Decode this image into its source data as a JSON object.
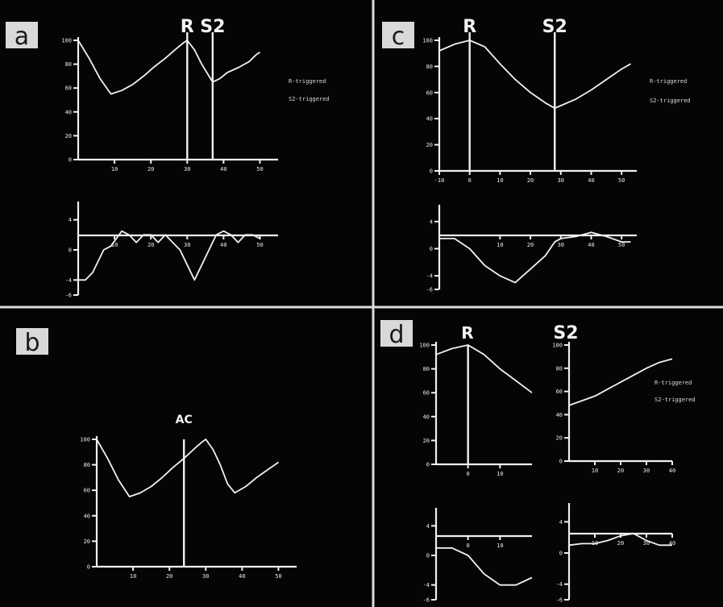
{
  "panels": {
    "a": {
      "label": "a"
    },
    "b": {
      "label": "b"
    },
    "c": {
      "label": "c"
    },
    "d": {
      "label": "d"
    }
  },
  "markers": {
    "r": "R",
    "s2": "S2",
    "ac": "AC"
  },
  "legend": {
    "r": "R-triggered",
    "s2": "S2-triggered"
  },
  "colors": {
    "background": "#050505",
    "trace": "#f0f0f0",
    "divider": "#dddddd",
    "label_box": "#d9d9d9"
  },
  "chart_data": [
    {
      "id": "a-top",
      "type": "line",
      "x": [
        0,
        10,
        20,
        30,
        40,
        50
      ],
      "ylim": [
        0,
        100
      ],
      "xlim": [
        0,
        55
      ],
      "yticks": [
        0,
        20,
        40,
        60,
        80,
        100
      ],
      "xticks": [
        10,
        20,
        30,
        40,
        50
      ],
      "series": [
        {
          "values": [
            [
              0,
              100
            ],
            [
              3,
              85
            ],
            [
              6,
              68
            ],
            [
              9,
              55
            ],
            [
              12,
              58
            ],
            [
              15,
              63
            ],
            [
              18,
              70
            ],
            [
              21,
              78
            ],
            [
              24,
              85
            ],
            [
              27,
              93
            ],
            [
              29,
              98
            ],
            [
              30,
              100
            ],
            [
              32,
              92
            ],
            [
              34,
              80
            ],
            [
              36,
              70
            ],
            [
              37,
              65
            ],
            [
              39,
              68
            ],
            [
              41,
              73
            ],
            [
              44,
              77
            ],
            [
              47,
              82
            ],
            [
              49,
              88
            ],
            [
              50,
              90
            ]
          ]
        }
      ],
      "markers": [
        {
          "x": 30,
          "label": "R"
        },
        {
          "x": 37,
          "label": "S2"
        }
      ]
    },
    {
      "id": "a-bottom",
      "type": "line",
      "xlim": [
        0,
        55
      ],
      "ylim": [
        -6,
        6
      ],
      "yticks": [
        -6,
        -4,
        0,
        4
      ],
      "xticks": [
        10,
        20,
        30,
        40,
        50
      ],
      "series": [
        {
          "values": [
            [
              0,
              -4
            ],
            [
              2,
              -4
            ],
            [
              4,
              -3
            ],
            [
              7,
              0
            ],
            [
              9,
              0.5
            ],
            [
              12,
              2.5
            ],
            [
              14,
              2
            ],
            [
              16,
              1
            ],
            [
              18,
              2
            ],
            [
              20,
              2
            ],
            [
              22,
              1
            ],
            [
              24,
              2
            ],
            [
              26,
              1
            ],
            [
              28,
              0
            ],
            [
              30,
              -2
            ],
            [
              32,
              -4
            ],
            [
              34,
              -2
            ],
            [
              36,
              0
            ],
            [
              38,
              2
            ],
            [
              40,
              2.5
            ],
            [
              42,
              2
            ],
            [
              44,
              1
            ],
            [
              46,
              2
            ],
            [
              48,
              2
            ],
            [
              50,
              1.5
            ]
          ]
        }
      ]
    },
    {
      "id": "b",
      "type": "line",
      "xlim": [
        0,
        55
      ],
      "ylim": [
        0,
        100
      ],
      "yticks": [
        0,
        20,
        40,
        60,
        80,
        100
      ],
      "xticks": [
        10,
        20,
        30,
        40,
        50
      ],
      "series": [
        {
          "values": [
            [
              0,
              100
            ],
            [
              3,
              85
            ],
            [
              6,
              68
            ],
            [
              9,
              55
            ],
            [
              12,
              58
            ],
            [
              15,
              63
            ],
            [
              18,
              70
            ],
            [
              21,
              78
            ],
            [
              24,
              85
            ],
            [
              27,
              93
            ],
            [
              29,
              98
            ],
            [
              30,
              100
            ],
            [
              32,
              92
            ],
            [
              34,
              80
            ],
            [
              36,
              65
            ],
            [
              38,
              58
            ],
            [
              41,
              63
            ],
            [
              44,
              70
            ],
            [
              47,
              76
            ],
            [
              49,
              80
            ],
            [
              50,
              82
            ]
          ]
        }
      ],
      "markers": [
        {
          "x": 24,
          "label": "AC"
        }
      ]
    },
    {
      "id": "c-top",
      "type": "line",
      "xlim": [
        -10,
        55
      ],
      "ylim": [
        0,
        100
      ],
      "yticks": [
        0,
        20,
        40,
        60,
        80,
        100
      ],
      "xticks": [
        -10,
        0,
        10,
        20,
        30,
        40,
        50
      ],
      "series": [
        {
          "values": [
            [
              -10,
              92
            ],
            [
              -5,
              97
            ],
            [
              0,
              100
            ],
            [
              5,
              95
            ],
            [
              10,
              82
            ],
            [
              15,
              70
            ],
            [
              20,
              60
            ],
            [
              25,
              52
            ],
            [
              28,
              48
            ],
            [
              30,
              50
            ],
            [
              35,
              55
            ],
            [
              40,
              62
            ],
            [
              45,
              70
            ],
            [
              50,
              78
            ],
            [
              53,
              82
            ]
          ]
        }
      ],
      "markers": [
        {
          "x": 0,
          "label": "R"
        },
        {
          "x": 28,
          "label": "S2"
        }
      ]
    },
    {
      "id": "c-bottom",
      "type": "line",
      "xlim": [
        -10,
        55
      ],
      "ylim": [
        -6,
        6
      ],
      "yticks": [
        -6,
        -4,
        0,
        4
      ],
      "xticks": [
        10,
        20,
        30,
        40,
        50
      ],
      "series": [
        {
          "values": [
            [
              -10,
              1.5
            ],
            [
              -5,
              1.5
            ],
            [
              0,
              0
            ],
            [
              5,
              -2.5
            ],
            [
              10,
              -4
            ],
            [
              15,
              -5
            ],
            [
              20,
              -3
            ],
            [
              25,
              -1
            ],
            [
              28,
              1
            ],
            [
              30,
              1.5
            ],
            [
              35,
              1.8
            ],
            [
              40,
              2.4
            ],
            [
              45,
              1.8
            ],
            [
              50,
              1
            ],
            [
              53,
              1
            ]
          ]
        }
      ]
    },
    {
      "id": "d-top-left",
      "type": "line",
      "xlim": [
        -10,
        20
      ],
      "ylim": [
        0,
        100
      ],
      "yticks": [
        0,
        20,
        40,
        60,
        80,
        100
      ],
      "xticks": [
        0,
        10
      ],
      "series": [
        {
          "values": [
            [
              -10,
              92
            ],
            [
              -5,
              97
            ],
            [
              0,
              100
            ],
            [
              5,
              92
            ],
            [
              10,
              80
            ],
            [
              15,
              70
            ],
            [
              20,
              60
            ]
          ]
        }
      ],
      "markers": [
        {
          "x": 0,
          "label": "R"
        }
      ]
    },
    {
      "id": "d-bottom-left",
      "type": "line",
      "xlim": [
        -10,
        20
      ],
      "ylim": [
        -6,
        6
      ],
      "yticks": [
        -6,
        -4,
        0,
        4
      ],
      "xticks": [
        0,
        10
      ],
      "series": [
        {
          "values": [
            [
              -10,
              1
            ],
            [
              -5,
              1
            ],
            [
              0,
              0
            ],
            [
              5,
              -2.5
            ],
            [
              10,
              -4
            ],
            [
              15,
              -4
            ],
            [
              20,
              -3
            ]
          ]
        }
      ]
    },
    {
      "id": "d-top-right",
      "type": "line",
      "xlim": [
        0,
        40
      ],
      "ylim": [
        0,
        100
      ],
      "yticks": [
        0,
        20,
        40,
        60,
        80,
        100
      ],
      "xticks": [
        10,
        20,
        30,
        40
      ],
      "series": [
        {
          "values": [
            [
              0,
              48
            ],
            [
              5,
              52
            ],
            [
              10,
              56
            ],
            [
              15,
              62
            ],
            [
              20,
              68
            ],
            [
              25,
              74
            ],
            [
              30,
              80
            ],
            [
              35,
              85
            ],
            [
              40,
              88
            ]
          ]
        }
      ]
    },
    {
      "id": "d-bottom-right",
      "type": "line",
      "xlim": [
        0,
        40
      ],
      "ylim": [
        -6,
        6
      ],
      "yticks": [
        -6,
        -4,
        0,
        4
      ],
      "xticks": [
        10,
        20,
        30,
        40
      ],
      "series": [
        {
          "values": [
            [
              0,
              1
            ],
            [
              5,
              1.2
            ],
            [
              10,
              1.2
            ],
            [
              15,
              1.6
            ],
            [
              20,
              2.2
            ],
            [
              25,
              2.5
            ],
            [
              30,
              1.6
            ],
            [
              35,
              1
            ],
            [
              40,
              1
            ]
          ]
        }
      ]
    }
  ]
}
